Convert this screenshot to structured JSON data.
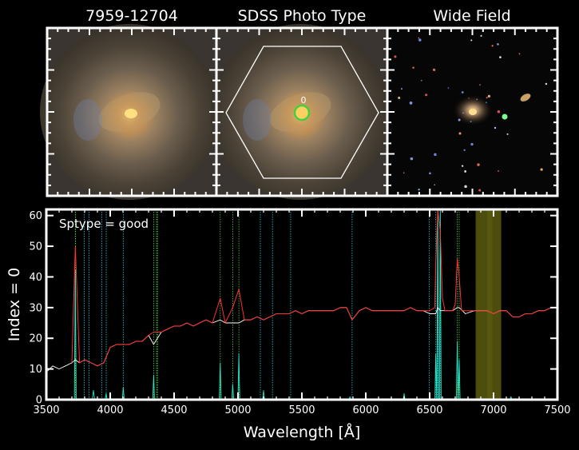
{
  "panels": {
    "titles": [
      "7959-12704",
      "SDSS Photo Type",
      "Wide Field"
    ],
    "aperture_label": "0"
  },
  "chart_data": {
    "type": "line",
    "annotation": "Sptype = good",
    "xlabel": "Wavelength [Å]",
    "ylabel": "Index = 0",
    "xlim": [
      3500,
      7500
    ],
    "ylim": [
      0,
      62
    ],
    "xticks": [
      3500,
      4000,
      4500,
      5000,
      5500,
      6000,
      6500,
      7000,
      7500
    ],
    "yticks": [
      0,
      10,
      20,
      30,
      40,
      50,
      60
    ],
    "grid": false,
    "series": [
      {
        "color": "#ffffff",
        "x": [
          3500,
          3550,
          3600,
          3650,
          3700,
          3727,
          3760,
          3800,
          3850,
          3900,
          3950,
          4000,
          4050,
          4100,
          4150,
          4200,
          4250,
          4300,
          4340,
          4400,
          4450,
          4500,
          4550,
          4600,
          4650,
          4700,
          4750,
          4800,
          4861,
          4900,
          4959,
          5007,
          5050,
          5100,
          5150,
          5200,
          5250,
          5300,
          5350,
          5400,
          5450,
          5500,
          5550,
          5600,
          5650,
          5700,
          5750,
          5800,
          5850,
          5893,
          5950,
          6000,
          6050,
          6100,
          6150,
          6200,
          6250,
          6300,
          6350,
          6400,
          6450,
          6500,
          6548,
          6563,
          6583,
          6620,
          6680,
          6716,
          6731,
          6780,
          6850,
          6900,
          6950,
          7000,
          7050,
          7100,
          7150,
          7200,
          7250,
          7300,
          7350,
          7400,
          7450,
          7500
        ],
        "y": [
          9,
          11,
          10,
          11,
          12,
          13,
          12,
          13,
          12,
          11,
          12,
          17,
          18,
          18,
          18,
          19,
          19,
          21,
          18,
          22,
          23,
          24,
          24,
          25,
          24,
          25,
          26,
          25,
          26,
          25,
          25,
          25,
          26,
          26,
          27,
          26,
          27,
          28,
          28,
          28,
          29,
          28,
          29,
          29,
          29,
          29,
          29,
          30,
          30,
          26,
          29,
          30,
          29,
          29,
          29,
          29,
          29,
          29,
          30,
          29,
          29,
          28,
          28,
          30,
          29,
          29,
          29,
          30,
          30,
          28,
          29,
          29,
          29,
          28,
          29,
          29,
          27,
          27,
          28,
          28,
          29,
          29,
          30,
          30
        ]
      },
      {
        "color": "#ff3030",
        "x": [
          3700,
          3727,
          3760,
          3800,
          3850,
          3900,
          3950,
          4000,
          4050,
          4100,
          4150,
          4200,
          4250,
          4300,
          4340,
          4400,
          4450,
          4500,
          4550,
          4600,
          4650,
          4700,
          4750,
          4800,
          4861,
          4900,
          4959,
          5007,
          5050,
          5100,
          5150,
          5200,
          5250,
          5300,
          5350,
          5400,
          5450,
          5500,
          5550,
          5600,
          5650,
          5700,
          5750,
          5800,
          5850,
          5893,
          5950,
          6000,
          6050,
          6100,
          6150,
          6200,
          6250,
          6300,
          6350,
          6400,
          6450,
          6500,
          6540,
          6548,
          6563,
          6583,
          6600,
          6620,
          6680,
          6700,
          6716,
          6731,
          6750,
          6780,
          6850,
          6900,
          6950,
          7000,
          7050,
          7100,
          7150,
          7200,
          7250,
          7300,
          7350,
          7400,
          7450,
          7500
        ],
        "y": [
          12,
          50,
          12,
          13,
          12,
          11,
          12,
          17,
          18,
          18,
          18,
          19,
          19,
          21,
          22,
          22,
          23,
          24,
          24,
          25,
          24,
          25,
          26,
          25,
          33,
          25,
          30,
          36,
          26,
          26,
          27,
          26,
          27,
          28,
          28,
          28,
          29,
          28,
          29,
          29,
          29,
          29,
          29,
          30,
          30,
          26,
          29,
          30,
          29,
          29,
          29,
          29,
          29,
          29,
          30,
          29,
          29,
          29,
          30,
          45,
          62,
          55,
          33,
          29,
          29,
          31,
          46,
          40,
          29,
          29,
          29,
          29,
          29,
          28,
          29,
          29,
          27,
          27,
          28,
          28,
          29,
          29,
          30,
          30
        ]
      },
      {
        "color": "#22e8c8",
        "x": [
          3500,
          3720,
          3727,
          3734,
          3860,
          3869,
          3878,
          3960,
          3968,
          3976,
          4095,
          4102,
          4110,
          4333,
          4340,
          4347,
          4854,
          4861,
          4868,
          4952,
          4959,
          4966,
          5000,
          5007,
          5014,
          5193,
          5200,
          5207,
          5870,
          5876,
          5882,
          6293,
          6300,
          6307,
          6541,
          6548,
          6555,
          6556,
          6563,
          6570,
          6576,
          6583,
          6590,
          6709,
          6716,
          6723,
          6724,
          6731,
          6738,
          7128,
          7136,
          7144,
          7500
        ],
        "y": [
          0,
          0,
          42,
          0,
          0,
          3,
          0,
          0,
          2,
          0,
          0,
          4,
          0,
          0,
          8,
          0,
          0,
          12,
          0,
          0,
          5,
          0,
          0,
          15,
          0,
          0,
          3,
          0,
          0,
          1,
          0,
          0,
          2,
          0,
          0,
          15,
          0,
          0,
          62,
          0,
          0,
          62,
          0,
          0,
          19,
          0,
          0,
          13,
          0,
          0,
          1,
          0,
          0
        ]
      }
    ],
    "line_markers": {
      "green": [
        3727,
        3729,
        4340,
        4363,
        4370,
        4861,
        4959,
        5007,
        6716,
        6731
      ],
      "cyan": [
        3797,
        3835,
        3934,
        3969,
        4102,
        5175,
        5270,
        5412,
        5893,
        6496,
        6548,
        6563,
        6583
      ]
    },
    "shaded_bands": [
      [
        6860,
        6990
      ],
      [
        6950,
        7060
      ]
    ],
    "band_color": "#5a5a10"
  }
}
